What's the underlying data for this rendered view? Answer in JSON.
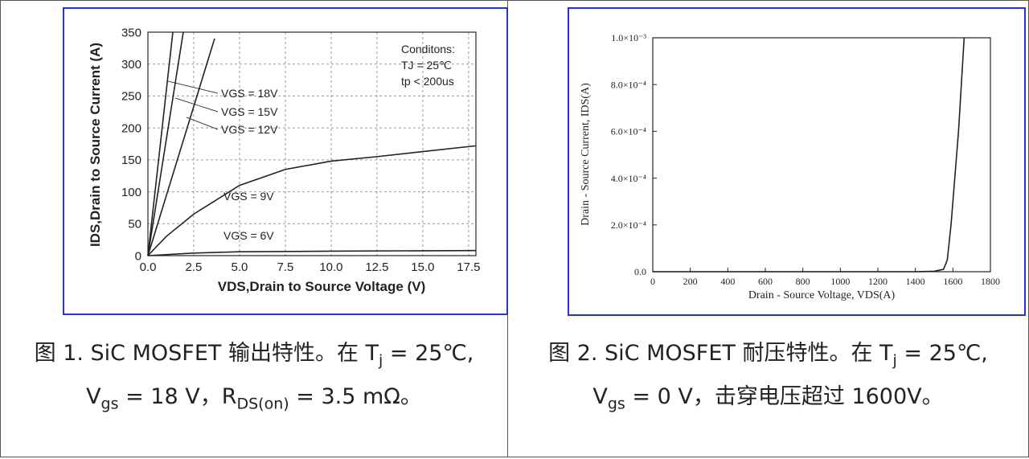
{
  "chart_data": [
    {
      "type": "line",
      "x_label": "VDS,Drain to Source Voltage (V)",
      "y_label": "IDS,Drain to Source Current (A)",
      "annotations": [
        "Conditons:",
        "TJ = 25℃",
        "tp < 200us"
      ],
      "xlim": [
        0,
        17.9
      ],
      "ylim": [
        0,
        350
      ],
      "grid": true,
      "color": "#222222",
      "xticks": [
        {
          "value": 0,
          "label": "0.0"
        },
        {
          "value": 2.5,
          "label": "2.5"
        },
        {
          "value": 5,
          "label": "5.0"
        },
        {
          "value": 7.5,
          "label": "7.5"
        },
        {
          "value": 10,
          "label": "10.0"
        },
        {
          "value": 12.5,
          "label": "12.5"
        },
        {
          "value": 15,
          "label": "15.0"
        },
        {
          "value": 17.5,
          "label": "17.5"
        }
      ],
      "yticks": [
        0,
        50,
        100,
        150,
        200,
        250,
        300,
        350
      ],
      "series": [
        {
          "name": "VGS = 18V",
          "x": [
            0,
            1.36
          ],
          "values": [
            0,
            350
          ]
        },
        {
          "name": "VGS = 15V",
          "x": [
            0,
            1.93
          ],
          "values": [
            0,
            350
          ]
        },
        {
          "name": "VGS = 12V",
          "x": [
            0,
            3.64
          ],
          "values": [
            0,
            340
          ]
        },
        {
          "name": "VGS = 9V",
          "x": [
            0,
            1,
            2.5,
            5,
            7.5,
            10,
            12.5,
            15,
            17.9
          ],
          "values": [
            0,
            30,
            65,
            110,
            135,
            148,
            155,
            163,
            172
          ]
        },
        {
          "name": "VGS = 6V",
          "x": [
            0,
            2.5,
            5,
            10,
            17.9
          ],
          "values": [
            0,
            4,
            6,
            7,
            8
          ]
        }
      ]
    },
    {
      "type": "line",
      "x_label": "Drain - Source Voltage, VDS(A)",
      "y_label": "Drain - Source Current, IDS(A)",
      "xlim": [
        0,
        1800
      ],
      "ylim": [
        0,
        0.001
      ],
      "grid": false,
      "color": "#222222",
      "xticks": [
        0,
        200,
        400,
        600,
        800,
        1000,
        1200,
        1400,
        1600,
        1800
      ],
      "yticks": [
        {
          "value": 0,
          "label": "0.0"
        },
        {
          "value": 0.0002,
          "label": "2.0×10⁻⁴"
        },
        {
          "value": 0.0004,
          "label": "4.0×10⁻⁴"
        },
        {
          "value": 0.0006,
          "label": "6.0×10⁻⁴"
        },
        {
          "value": 0.0008,
          "label": "8.0×10⁻⁴"
        },
        {
          "value": 0.001,
          "label": "1.0×10⁻³"
        }
      ],
      "series": [
        {
          "name": "IDS",
          "x": [
            0,
            1400,
            1500,
            1550,
            1570,
            1590,
            1610,
            1630,
            1660
          ],
          "values": [
            0,
            0,
            2e-06,
            1e-05,
            5e-05,
            0.0002,
            0.0004,
            0.0006,
            0.001
          ]
        }
      ]
    }
  ],
  "captions": [
    [
      "图 1. SiC MOSFET  输出特性。在 T",
      "j",
      " = 25℃,",
      "V",
      "gs",
      " = 18 V，R",
      "DS(on)",
      " = 3.5 mΩ。"
    ],
    [
      "图 2. SiC MOSFET  耐压特性。在 T",
      "j",
      " = 25℃,",
      "V",
      "gs",
      " = 0 V，击穿电压超过 1600V。"
    ]
  ]
}
